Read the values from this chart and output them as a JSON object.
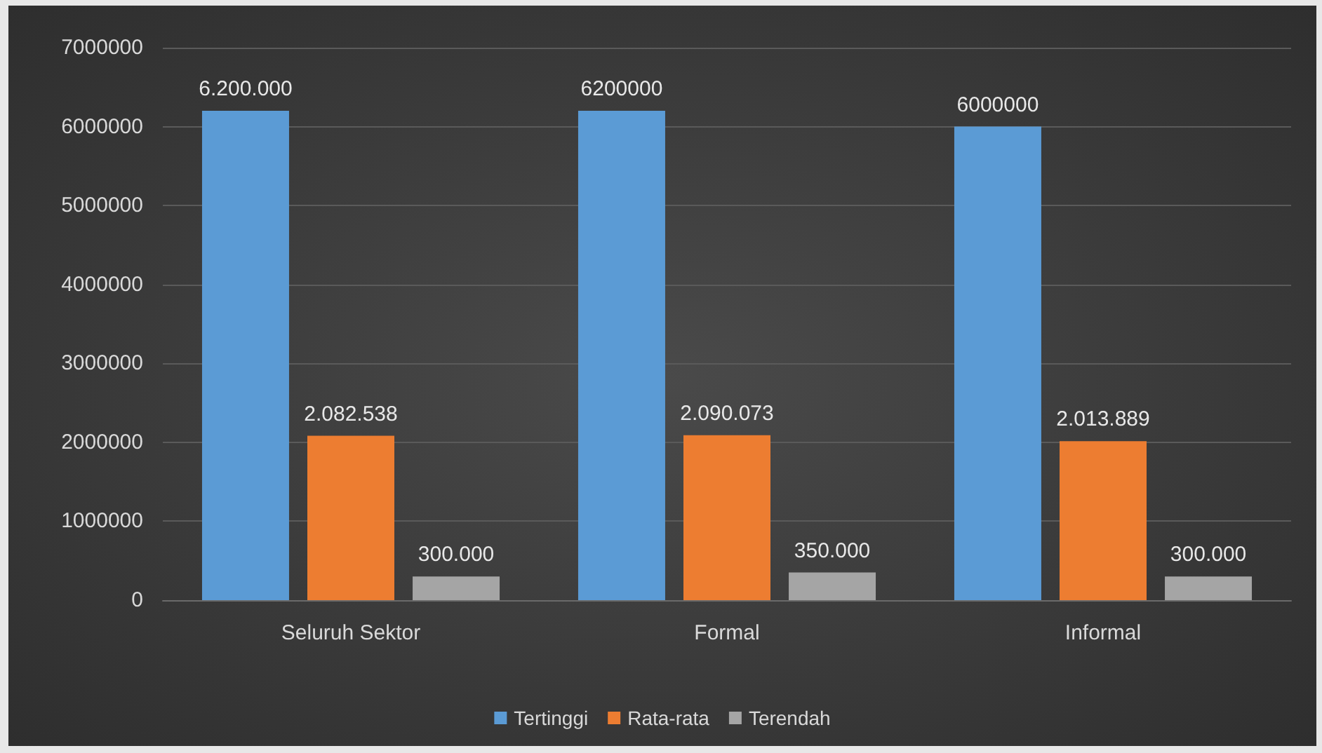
{
  "chart_data": {
    "type": "bar",
    "categories": [
      "Seluruh Sektor",
      "Formal",
      "Informal"
    ],
    "series": [
      {
        "name": "Tertinggi",
        "color": "#5b9bd5",
        "values": [
          6200000,
          6200000,
          6000000
        ],
        "value_labels": [
          "6.200.000",
          "6200000",
          "6000000"
        ]
      },
      {
        "name": "Rata-rata",
        "color": "#ed7d31",
        "values": [
          2082538,
          2090073,
          2013889
        ],
        "value_labels": [
          "2.082.538",
          "2.090.073",
          "2.013.889"
        ]
      },
      {
        "name": "Terendah",
        "color": "#a5a5a5",
        "values": [
          300000,
          350000,
          300000
        ],
        "value_labels": [
          "300.000",
          "350.000",
          "300.000"
        ]
      }
    ],
    "ylim": [
      0,
      7000000
    ],
    "yticks": [
      0,
      1000000,
      2000000,
      3000000,
      4000000,
      5000000,
      6000000,
      7000000
    ],
    "grid": "y",
    "legend": "bottom"
  }
}
